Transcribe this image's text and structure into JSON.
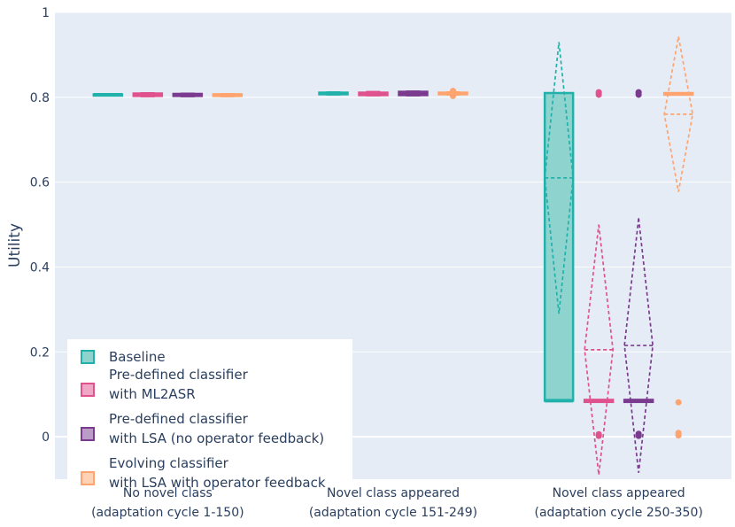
{
  "chart_data": {
    "type": "box",
    "title": "",
    "ylabel": "Utility",
    "xlabel": "",
    "ylim": [
      -0.1,
      1.0
    ],
    "yticks": [
      0,
      0.2,
      0.4,
      0.6,
      0.8,
      1
    ],
    "ytick_labels": [
      "0",
      "0.2",
      "0.4",
      "0.6",
      "0.8",
      "1"
    ],
    "categories": [
      {
        "line1": "No novel class",
        "line2": "(adaptation cycle 1-150)"
      },
      {
        "line1": "Novel class appeared",
        "line2": "(adaptation cycle 151-249)"
      },
      {
        "line1": "Novel class appeared",
        "line2": "(adaptation cycle 250-350)"
      }
    ],
    "series": [
      {
        "name": "Baseline",
        "legend_line1": "Baseline",
        "legend_line2": "",
        "color": "#20b2aa",
        "fill": "#8fd3cf",
        "boxes": [
          {
            "q1": 0.805,
            "median": 0.806,
            "q3": 0.807,
            "lower": 0.805,
            "upper": 0.807,
            "mean": 0.806,
            "sd": 0.001,
            "outliers": []
          },
          {
            "q1": 0.807,
            "median": 0.809,
            "q3": 0.811,
            "lower": 0.806,
            "upper": 0.812,
            "mean": 0.809,
            "sd": 0.002,
            "outliers": []
          },
          {
            "q1": 0.085,
            "median": 0.085,
            "q3": 0.81,
            "lower": 0.085,
            "upper": 0.81,
            "mean": 0.61,
            "sd": 0.32,
            "outliers": []
          }
        ]
      },
      {
        "name": "Pre-defined classifier with ML2ASR",
        "legend_line1": "Pre-defined classifier",
        "legend_line2": "with ML2ASR",
        "color": "#e0528d",
        "fill": "#f0a6c5",
        "boxes": [
          {
            "q1": 0.803,
            "median": 0.806,
            "q3": 0.809,
            "lower": 0.802,
            "upper": 0.81,
            "mean": 0.806,
            "sd": 0.002,
            "outliers": []
          },
          {
            "q1": 0.805,
            "median": 0.808,
            "q3": 0.811,
            "lower": 0.804,
            "upper": 0.813,
            "mean": 0.808,
            "sd": 0.002,
            "outliers": []
          },
          {
            "q1": 0.082,
            "median": 0.084,
            "q3": 0.087,
            "lower": 0.082,
            "upper": 0.087,
            "mean": 0.205,
            "sd": 0.295,
            "outliers": [
              0.806,
              0.809,
              0.812,
              0.002,
              0.004,
              0.006
            ]
          }
        ]
      },
      {
        "name": "Pre-defined classifier with LSA (no operator feedback)",
        "legend_line1": "Pre-defined classifier",
        "legend_line2": "with LSA (no operator feedback)",
        "color": "#7a3b8f",
        "fill": "#bb9cc7",
        "boxes": [
          {
            "q1": 0.803,
            "median": 0.806,
            "q3": 0.808,
            "lower": 0.802,
            "upper": 0.809,
            "mean": 0.806,
            "sd": 0.002,
            "outliers": []
          },
          {
            "q1": 0.805,
            "median": 0.809,
            "q3": 0.813,
            "lower": 0.804,
            "upper": 0.814,
            "mean": 0.809,
            "sd": 0.003,
            "outliers": []
          },
          {
            "q1": 0.082,
            "median": 0.084,
            "q3": 0.087,
            "lower": 0.082,
            "upper": 0.087,
            "mean": 0.215,
            "sd": 0.3,
            "outliers": [
              0.806,
              0.809,
              0.812,
              0.002,
              0.004,
              0.007
            ]
          }
        ]
      },
      {
        "name": "Evolving classifier with LSA with operator feedback",
        "legend_line1": "Evolving classifier",
        "legend_line2": "with LSA with operator feedback",
        "color": "#ffa46f",
        "fill": "#ffd1b5",
        "boxes": [
          {
            "q1": 0.803,
            "median": 0.805,
            "q3": 0.807,
            "lower": 0.802,
            "upper": 0.808,
            "mean": 0.805,
            "sd": 0.002,
            "outliers": []
          },
          {
            "q1": 0.807,
            "median": 0.809,
            "q3": 0.811,
            "lower": 0.806,
            "upper": 0.812,
            "mean": 0.809,
            "sd": 0.002,
            "outliers": [
              0.803,
              0.815
            ]
          },
          {
            "q1": 0.806,
            "median": 0.808,
            "q3": 0.81,
            "lower": 0.806,
            "upper": 0.81,
            "mean": 0.76,
            "sd": 0.183,
            "outliers": [
              0.081,
              0.003,
              0.006,
              0.009
            ]
          }
        ]
      }
    ],
    "legend_position": "bottom-left"
  }
}
